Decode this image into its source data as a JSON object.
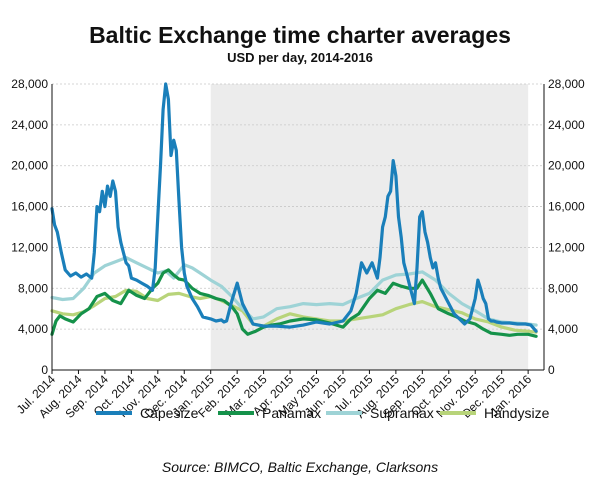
{
  "chart_data": {
    "type": "line",
    "title": "Baltic Exchange time charter averages",
    "subtitle": "USD per day, 2014-2016",
    "source": "Source: BIMCO, Baltic Exchange, Clarksons",
    "ylim": [
      0,
      28000
    ],
    "y_ticks": [
      "0",
      "4,000",
      "8,000",
      "12,000",
      "16,000",
      "20,000",
      "24,000",
      "28,000"
    ],
    "categories": [
      "Jul. 2014",
      "Aug. 2014",
      "Sep. 2014",
      "Oct. 2014",
      "Nov. 2014",
      "Dec. 2014",
      "Jan. 2015",
      "Feb. 2015",
      "Mar. 2015",
      "Apr. 2015",
      "May 2015",
      "Jun. 2015",
      "Jul. 2015",
      "Aug. 2015",
      "Sep. 2015",
      "Oct. 2015",
      "Nov. 2015",
      "Dec. 2015",
      "Jan. 2016"
    ],
    "x_range": [
      0,
      18.6
    ],
    "shaded_region": [
      6.0,
      18.0
    ],
    "grid": "horizontal dashed",
    "legend_position": "bottom",
    "colors": {
      "capesize": "#1a7fba",
      "panamax": "#15924a",
      "supramax": "#9ed3d6",
      "handysize": "#b8d47a",
      "shade": "#ececec",
      "grid": "#c8c8c8"
    },
    "series": [
      {
        "name": "Capesize",
        "color": "#1a7fba",
        "x": [
          0,
          0.1,
          0.2,
          0.35,
          0.5,
          0.7,
          0.9,
          1.1,
          1.3,
          1.5,
          1.6,
          1.7,
          1.8,
          1.9,
          2.0,
          2.1,
          2.2,
          2.3,
          2.4,
          2.5,
          2.6,
          2.7,
          2.8,
          2.9,
          3.0,
          3.2,
          3.4,
          3.6,
          3.8,
          3.9,
          4.0,
          4.1,
          4.2,
          4.3,
          4.4,
          4.5,
          4.6,
          4.7,
          4.8,
          4.9,
          5.0,
          5.1,
          5.3,
          5.5,
          5.7,
          6.0,
          6.2,
          6.4,
          6.5,
          6.6,
          6.8,
          7.0,
          7.2,
          7.4,
          7.6,
          8.0,
          8.5,
          9.0,
          9.5,
          10.0,
          10.5,
          11.0,
          11.3,
          11.5,
          11.7,
          11.9,
          12.1,
          12.3,
          12.4,
          12.5,
          12.6,
          12.7,
          12.8,
          12.9,
          13.0,
          13.1,
          13.2,
          13.3,
          13.4,
          13.5,
          13.6,
          13.7,
          13.8,
          13.9,
          14.0,
          14.1,
          14.2,
          14.3,
          14.4,
          14.5,
          14.6,
          14.7,
          14.8,
          14.9,
          15.0,
          15.2,
          15.4,
          15.6,
          15.8,
          16.0,
          16.1,
          16.2,
          16.3,
          16.4,
          16.5,
          16.6,
          16.7,
          16.8,
          17.0,
          17.3,
          17.6,
          17.9,
          18.1,
          18.3
        ],
        "values": [
          15800,
          14200,
          13500,
          11500,
          9800,
          9200,
          9500,
          9100,
          9400,
          9000,
          11500,
          16000,
          15500,
          17500,
          16000,
          18000,
          17000,
          18500,
          17500,
          14000,
          12500,
          11500,
          10500,
          10200,
          9000,
          8800,
          8500,
          8200,
          7800,
          10000,
          15000,
          20000,
          25500,
          28000,
          26500,
          21000,
          22500,
          21500,
          16500,
          12000,
          9500,
          8200,
          7000,
          6200,
          5200,
          5000,
          4800,
          4900,
          4700,
          4800,
          6800,
          8500,
          6500,
          5500,
          4500,
          4300,
          4300,
          4200,
          4400,
          4700,
          4500,
          4800,
          5800,
          7500,
          10500,
          9500,
          10500,
          9000,
          11000,
          14000,
          15000,
          17000,
          17500,
          20500,
          19000,
          15000,
          13000,
          10500,
          9500,
          8500,
          7500,
          6500,
          10000,
          15000,
          15500,
          13500,
          12500,
          11000,
          10000,
          10500,
          9000,
          8000,
          7500,
          7000,
          6500,
          5500,
          5000,
          4500,
          5000,
          7000,
          8800,
          8000,
          7000,
          6500,
          5000,
          4800,
          4800,
          4700,
          4600,
          4600,
          4500,
          4500,
          4400,
          3800
        ]
      },
      {
        "name": "Panamax",
        "color": "#15924a",
        "x": [
          0,
          0.15,
          0.3,
          0.5,
          0.8,
          1.1,
          1.4,
          1.7,
          2.0,
          2.3,
          2.6,
          2.9,
          3.2,
          3.5,
          3.8,
          4.0,
          4.2,
          4.4,
          4.6,
          4.8,
          5.0,
          5.3,
          5.6,
          5.9,
          6.2,
          6.5,
          6.8,
          7.0,
          7.2,
          7.4,
          7.7,
          8.0,
          8.3,
          8.6,
          9.0,
          9.5,
          10.0,
          10.5,
          11.0,
          11.3,
          11.6,
          12.0,
          12.3,
          12.6,
          12.9,
          13.2,
          13.5,
          13.8,
          14.0,
          14.3,
          14.6,
          15.0,
          15.3,
          15.6,
          16.0,
          16.3,
          16.6,
          17.0,
          17.3,
          17.6,
          18.0,
          18.3
        ],
        "values": [
          3500,
          4800,
          5300,
          5000,
          4700,
          5500,
          6000,
          7200,
          7500,
          6800,
          6500,
          7800,
          7300,
          7000,
          8000,
          8500,
          9500,
          9800,
          9300,
          8900,
          8800,
          8000,
          7500,
          7300,
          7000,
          6800,
          6200,
          5500,
          4000,
          3500,
          3800,
          4200,
          4400,
          4500,
          4800,
          5000,
          4900,
          4600,
          4200,
          5000,
          5500,
          7000,
          7800,
          7500,
          8500,
          8200,
          8000,
          8000,
          8800,
          7500,
          6000,
          5500,
          5200,
          4800,
          4500,
          4000,
          3600,
          3500,
          3400,
          3500,
          3500,
          3300
        ]
      },
      {
        "name": "Supramax",
        "color": "#9ed3d6",
        "x": [
          0,
          0.4,
          0.8,
          1.2,
          1.6,
          2.0,
          2.4,
          2.8,
          3.2,
          3.6,
          4.0,
          4.3,
          4.6,
          5.0,
          5.3,
          5.6,
          6.0,
          6.4,
          6.8,
          7.2,
          7.6,
          8.0,
          8.5,
          9.0,
          9.5,
          10.0,
          10.5,
          11.0,
          11.5,
          12.0,
          12.5,
          13.0,
          13.5,
          14.0,
          14.5,
          15.0,
          15.5,
          16.0,
          16.5,
          17.0,
          17.5,
          18.0,
          18.3
        ],
        "values": [
          7100,
          6900,
          7000,
          8000,
          9500,
          10200,
          10600,
          11000,
          10500,
          10000,
          9500,
          9700,
          9000,
          10300,
          10000,
          9500,
          8800,
          8200,
          7200,
          6000,
          5000,
          5200,
          6000,
          6200,
          6500,
          6400,
          6500,
          6400,
          7000,
          7500,
          8800,
          9300,
          9400,
          9600,
          8800,
          7500,
          6500,
          5800,
          5000,
          4700,
          4600,
          4500,
          4400
        ]
      },
      {
        "name": "Handysize",
        "color": "#b8d47a",
        "x": [
          0,
          0.4,
          0.8,
          1.2,
          1.6,
          2.0,
          2.4,
          2.8,
          3.2,
          3.6,
          4.0,
          4.4,
          4.8,
          5.2,
          5.6,
          6.0,
          6.4,
          6.8,
          7.2,
          7.6,
          8.0,
          8.5,
          9.0,
          9.5,
          10.0,
          10.5,
          11.0,
          11.5,
          12.0,
          12.5,
          13.0,
          13.5,
          14.0,
          14.5,
          15.0,
          15.5,
          16.0,
          16.5,
          17.0,
          17.5,
          18.0,
          18.3
        ],
        "values": [
          5800,
          5500,
          5400,
          5700,
          6300,
          7000,
          7200,
          7800,
          7700,
          7000,
          6800,
          7400,
          7500,
          7200,
          7000,
          7200,
          6800,
          6300,
          5800,
          4500,
          4300,
          5000,
          5500,
          5200,
          5000,
          4800,
          4800,
          5000,
          5200,
          5400,
          6000,
          6400,
          6700,
          6200,
          5900,
          5600,
          5000,
          4700,
          4200,
          3900,
          3800,
          3700
        ]
      }
    ]
  }
}
